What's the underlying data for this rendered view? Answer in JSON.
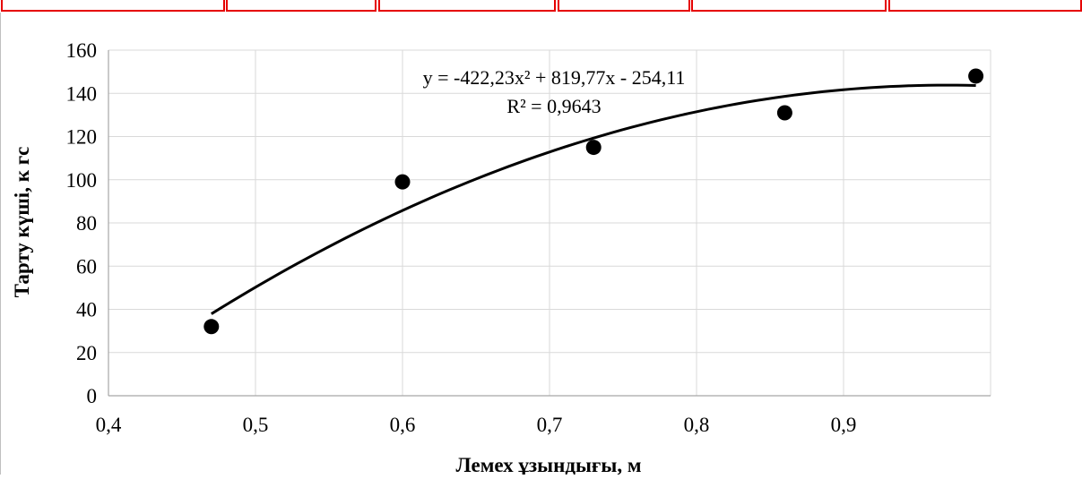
{
  "chart_data": {
    "type": "scatter",
    "xlabel": "Лемех ұзындығы, м",
    "ylabel": "Тарту күші, к гс",
    "xlim": [
      0.4,
      1.0
    ],
    "ylim": [
      0,
      160
    ],
    "x_ticks": [
      "0,4",
      "0,5",
      "0,6",
      "0,7",
      "0,8",
      "0,9"
    ],
    "y_ticks": [
      "0",
      "20",
      "40",
      "60",
      "80",
      "100",
      "120",
      "140",
      "160"
    ],
    "grid": "vertical and horizontal",
    "series": [
      {
        "points": [
          {
            "x": 0.47,
            "y": 32
          },
          {
            "x": 0.6,
            "y": 99
          },
          {
            "x": 0.73,
            "y": 115
          },
          {
            "x": 0.86,
            "y": 131
          },
          {
            "x": 0.99,
            "y": 148
          }
        ]
      }
    ],
    "trendline": {
      "type": "polynomial",
      "coefficients": [
        -422.23,
        819.77,
        -254.11
      ],
      "x_range": [
        0.47,
        0.99
      ],
      "equation": "y = -422,23x² + 819,77x - 254,11",
      "r_squared": "R² = 0,9643"
    },
    "colors": {
      "marker": "#000000",
      "line": "#000000",
      "grid": "#d9d9d9",
      "border": "#e60000"
    }
  }
}
